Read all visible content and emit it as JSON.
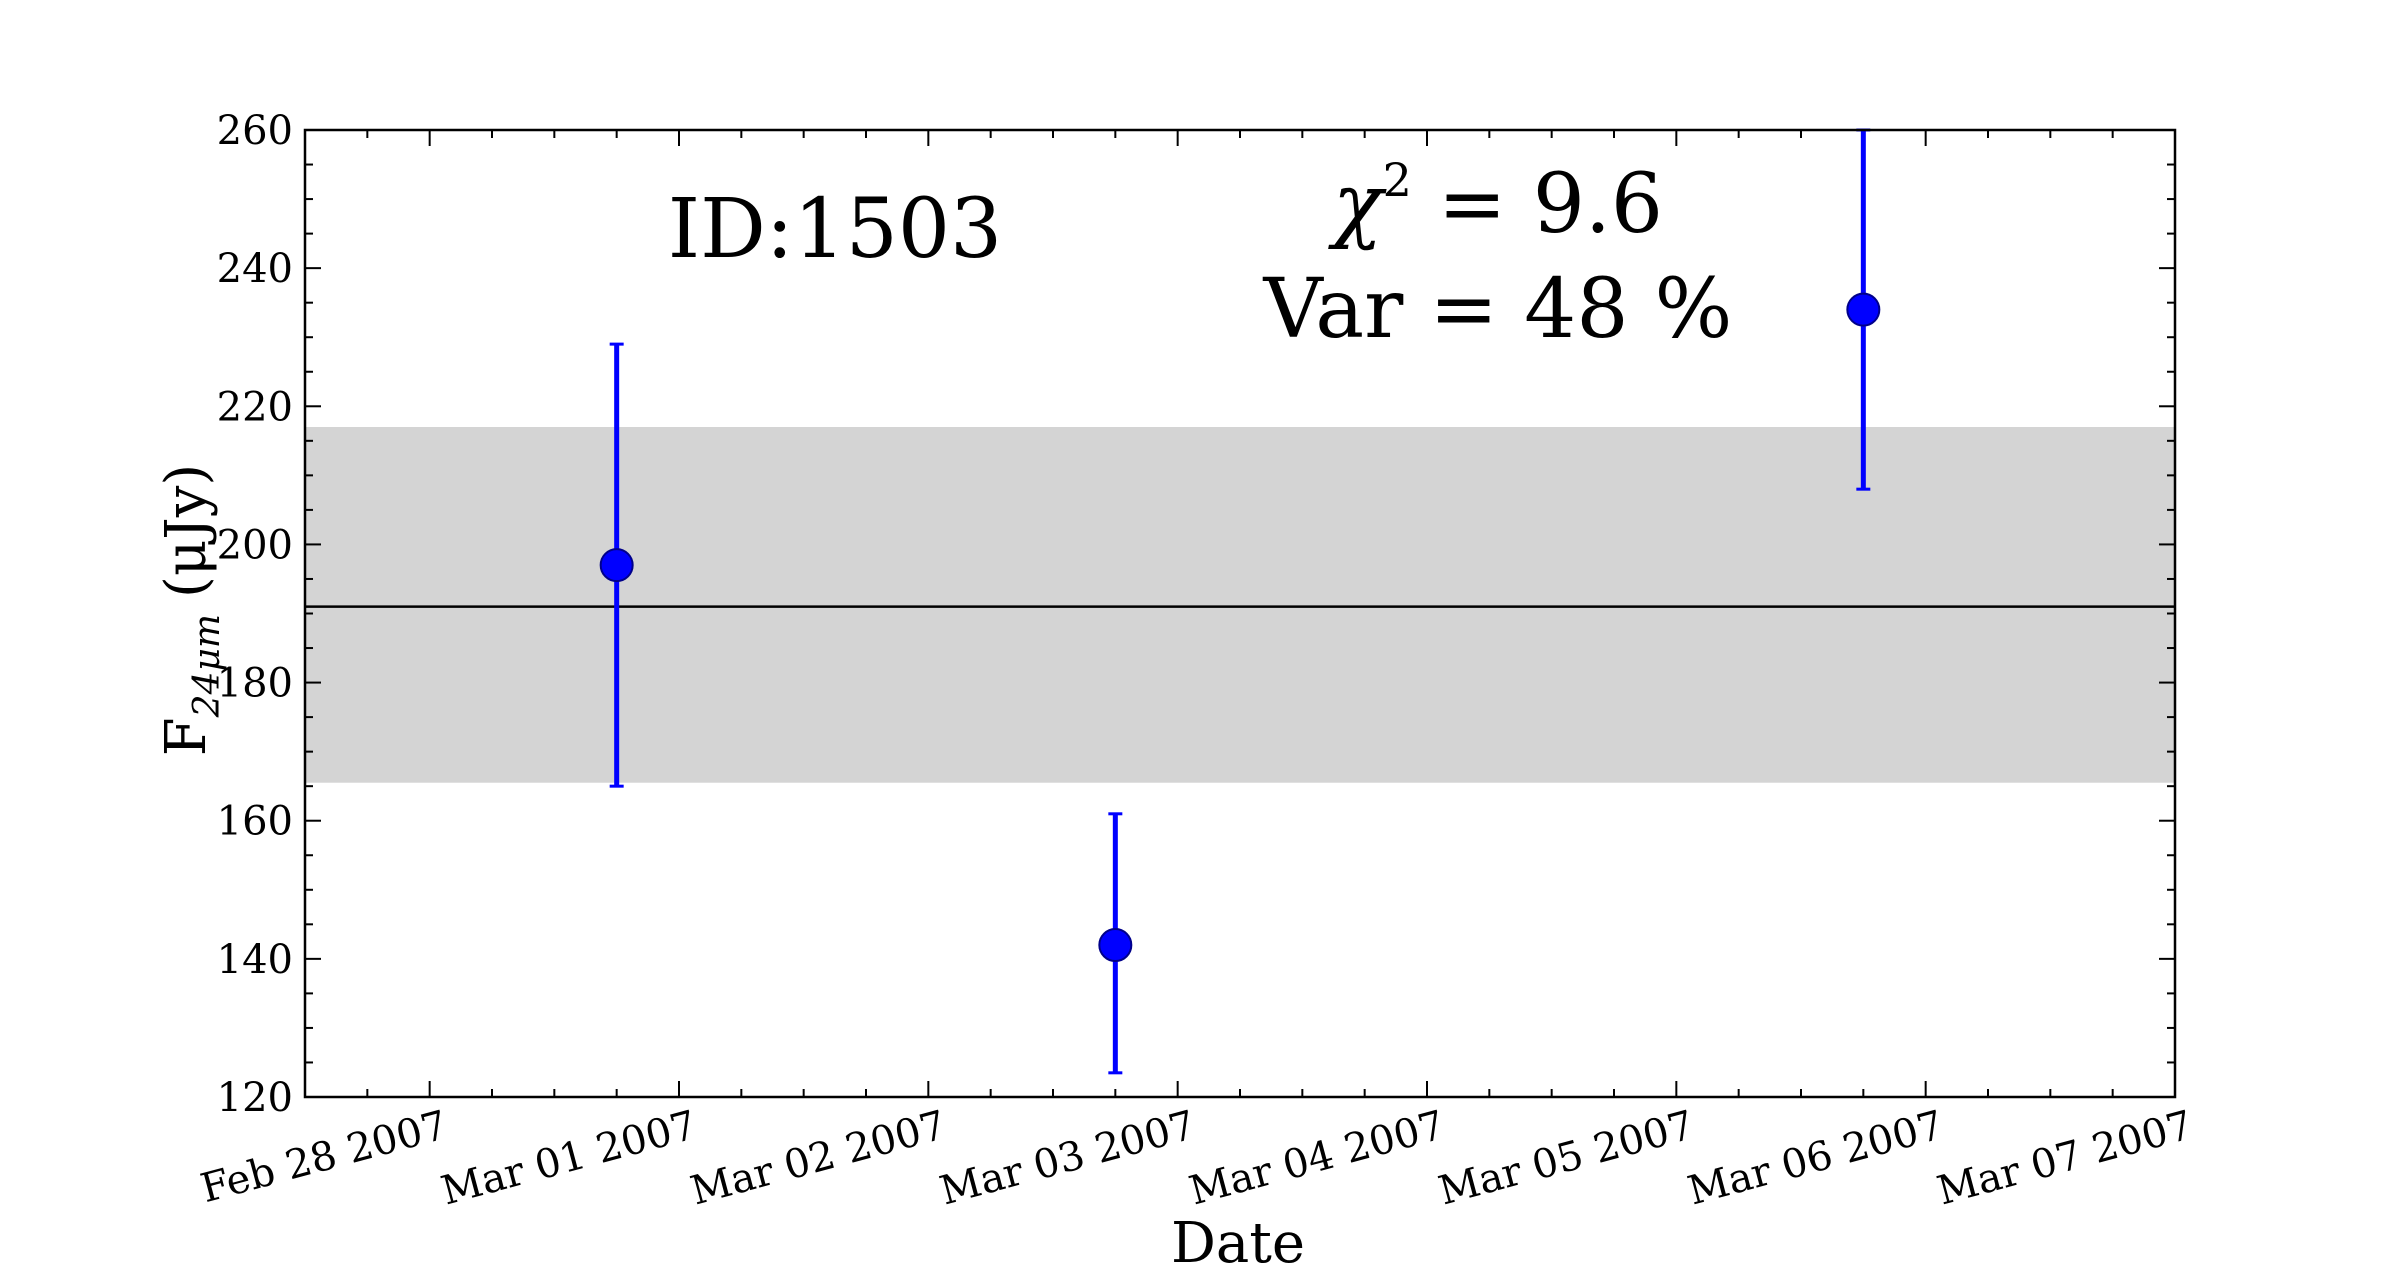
{
  "chart_data": {
    "type": "scatter",
    "title": "",
    "xlabel": "Date",
    "ylabel": {
      "prefix": "F",
      "subscript": "24μm",
      "suffix": "(μJy)"
    },
    "xlim": [
      "2007-02-27T12:00",
      "2007-03-07T00:00"
    ],
    "ylim": [
      120,
      260
    ],
    "x_tick_labels": [
      {
        "x": "2007-02-28",
        "label": "Feb 28 2007"
      },
      {
        "x": "2007-03-01",
        "label": "Mar 01 2007"
      },
      {
        "x": "2007-03-02",
        "label": "Mar 02 2007"
      },
      {
        "x": "2007-03-03",
        "label": "Mar 03 2007"
      },
      {
        "x": "2007-03-04",
        "label": "Mar 04 2007"
      },
      {
        "x": "2007-03-05",
        "label": "Mar 05 2007"
      },
      {
        "x": "2007-03-06",
        "label": "Mar 06 2007"
      },
      {
        "x": "2007-03-07",
        "label": "Mar 07 2007"
      }
    ],
    "y_ticks": [
      120,
      140,
      160,
      180,
      200,
      220,
      240,
      260
    ],
    "grid": false,
    "series": [
      {
        "color": "#0000ff",
        "points": [
          {
            "x": "2007-02-28T18:00",
            "y": 197,
            "y_low": 165,
            "y_high": 229
          },
          {
            "x": "2007-03-02T18:00",
            "y": 142,
            "y_low": 123.5,
            "y_high": 161
          },
          {
            "x": "2007-03-05T18:00",
            "y": 234,
            "y_low": 208,
            "y_high": 260
          }
        ]
      }
    ],
    "mean_line": {
      "y": 191,
      "color": "#000000"
    },
    "band": {
      "y_low": 165.5,
      "y_high": 217,
      "color": "#d4d4d4"
    },
    "annotations": {
      "id_label": "ID:1503",
      "chi2_symbol": "χ",
      "chi2_exponent": "2",
      "chi2_value": " = 9.6",
      "var_label": "Var = 48 %"
    }
  }
}
